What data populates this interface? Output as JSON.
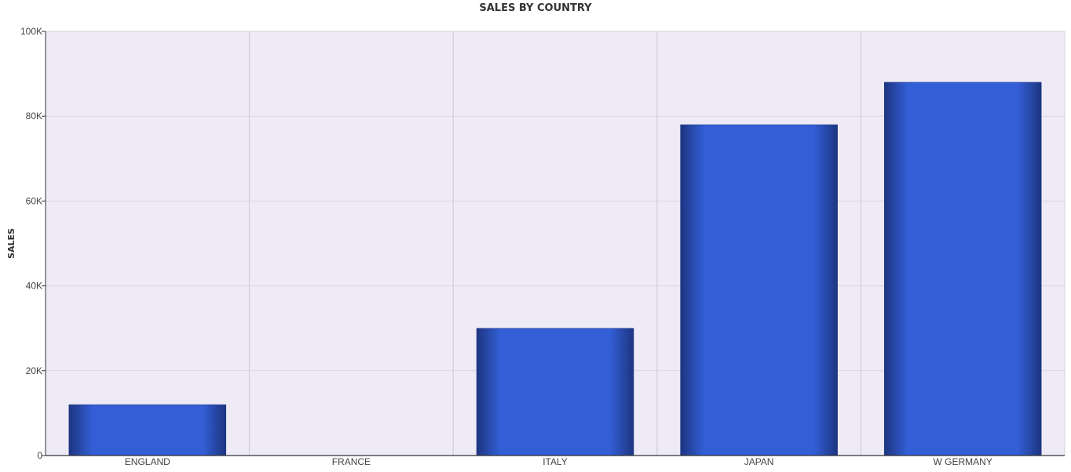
{
  "chart_data": {
    "type": "bar",
    "title": "SALES BY COUNTRY",
    "xlabel": "",
    "ylabel": "SALES",
    "categories": [
      "ENGLAND",
      "FRANCE",
      "ITALY",
      "JAPAN",
      "W GERMANY"
    ],
    "series": [
      {
        "values": [
          12000,
          0,
          30000,
          78000,
          88000
        ]
      }
    ],
    "ylim": [
      0,
      100000
    ],
    "yticks": [
      0,
      20000,
      40000,
      60000,
      80000,
      100000
    ],
    "ytick_labels": [
      "0",
      "20K",
      "40K",
      "60K",
      "80K",
      "100K"
    ],
    "grid": true,
    "legend": "none"
  },
  "colors": {
    "plot_background": "#eeebf6",
    "grid": "#d6d3df",
    "bar_center": "#335ed6",
    "bar_edge": "#1c3580",
    "axis_line": "#333333"
  }
}
